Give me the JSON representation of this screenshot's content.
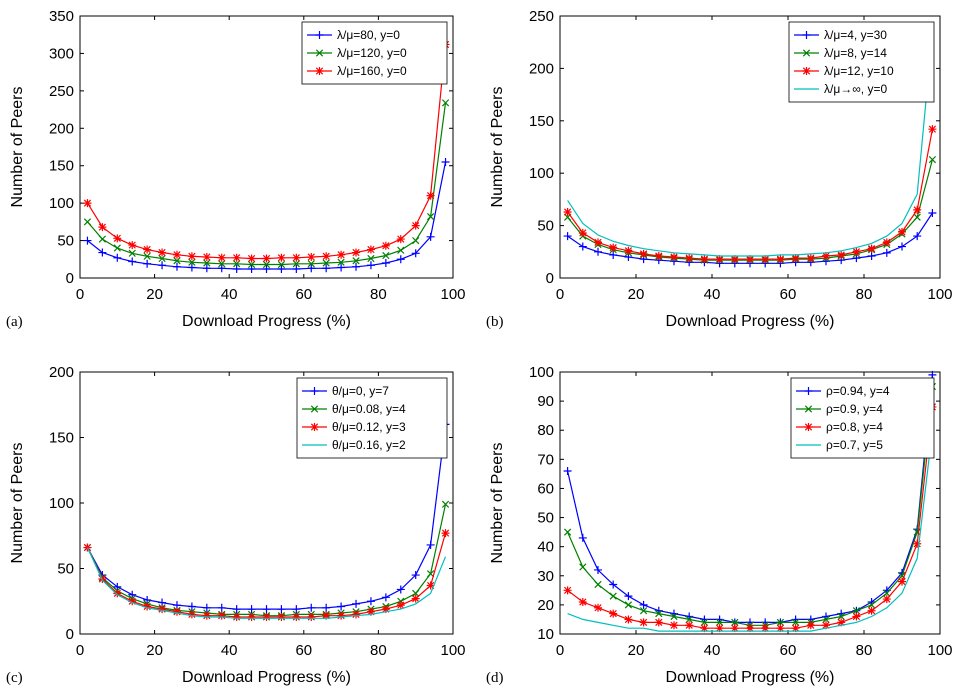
{
  "colors": {
    "blue": "#0000ff",
    "green": "#008000",
    "red": "#ff0000",
    "cyan": "#00bfbf"
  },
  "chart_data": [
    {
      "type": "line",
      "panel_label": "(a)",
      "xlabel": "Download Progress (%)",
      "ylabel": "Number of Peers",
      "xlim": [
        0,
        100
      ],
      "ylim": [
        0,
        350
      ],
      "xticks": [
        0,
        20,
        40,
        60,
        80,
        100
      ],
      "yticks": [
        0,
        50,
        100,
        150,
        200,
        250,
        300,
        350
      ],
      "legend_position": "top-right",
      "x": [
        2,
        6,
        10,
        14,
        18,
        22,
        26,
        30,
        34,
        38,
        42,
        46,
        50,
        54,
        58,
        62,
        66,
        70,
        74,
        78,
        82,
        86,
        90,
        94,
        98
      ],
      "series": [
        {
          "name": "λ/μ=80, y=0",
          "color": "#0000ff",
          "marker": "plus",
          "values": [
            50,
            34,
            27,
            22,
            19,
            17,
            15,
            14,
            13,
            13,
            12,
            12,
            12,
            12,
            12,
            13,
            13,
            14,
            15,
            17,
            20,
            25,
            33,
            55,
            155
          ]
        },
        {
          "name": "λ/μ=120, y=0",
          "color": "#008000",
          "marker": "x",
          "values": [
            75,
            52,
            40,
            33,
            29,
            26,
            23,
            21,
            20,
            19,
            19,
            18,
            18,
            18,
            19,
            19,
            20,
            21,
            23,
            26,
            30,
            37,
            50,
            82,
            234
          ]
        },
        {
          "name": "λ/μ=160, y=0",
          "color": "#ff0000",
          "marker": "star",
          "values": [
            100,
            68,
            53,
            44,
            38,
            34,
            31,
            29,
            28,
            27,
            27,
            26,
            26,
            27,
            27,
            28,
            29,
            31,
            34,
            38,
            43,
            52,
            70,
            110,
            312
          ]
        }
      ]
    },
    {
      "type": "line",
      "panel_label": "(b)",
      "xlabel": "Download Progress (%)",
      "ylabel": "Number of Peers",
      "xlim": [
        0,
        100
      ],
      "ylim": [
        0,
        250
      ],
      "xticks": [
        0,
        20,
        40,
        60,
        80,
        100
      ],
      "yticks": [
        0,
        50,
        100,
        150,
        200,
        250
      ],
      "legend_position": "top-right",
      "x": [
        2,
        6,
        10,
        14,
        18,
        22,
        26,
        30,
        34,
        38,
        42,
        46,
        50,
        54,
        58,
        62,
        66,
        70,
        74,
        78,
        82,
        86,
        90,
        94,
        98
      ],
      "series": [
        {
          "name": "λ/μ=4, y=30",
          "color": "#0000ff",
          "marker": "plus",
          "values": [
            40,
            30,
            25,
            22,
            20,
            18,
            17,
            16,
            15,
            15,
            14,
            14,
            14,
            14,
            14,
            15,
            15,
            16,
            17,
            19,
            21,
            24,
            30,
            40,
            62
          ]
        },
        {
          "name": "λ/μ=8, y=14",
          "color": "#008000",
          "marker": "x",
          "values": [
            58,
            40,
            32,
            27,
            24,
            22,
            20,
            19,
            18,
            17,
            17,
            17,
            17,
            17,
            17,
            18,
            18,
            19,
            21,
            23,
            27,
            32,
            42,
            58,
            113
          ]
        },
        {
          "name": "λ/μ=12, y=10",
          "color": "#ff0000",
          "marker": "star",
          "values": [
            63,
            43,
            34,
            29,
            26,
            23,
            21,
            20,
            19,
            18,
            18,
            18,
            18,
            18,
            18,
            19,
            19,
            21,
            22,
            25,
            28,
            34,
            44,
            65,
            142
          ]
        },
        {
          "name": "λ/μ→∞, y=0",
          "color": "#00bfbf",
          "marker": "none",
          "values": [
            74,
            52,
            41,
            35,
            31,
            28,
            26,
            24,
            23,
            22,
            21,
            21,
            21,
            21,
            22,
            22,
            23,
            24,
            26,
            29,
            33,
            40,
            52,
            80,
            234
          ]
        }
      ]
    },
    {
      "type": "line",
      "panel_label": "(c)",
      "xlabel": "Download Progress (%)",
      "ylabel": "Number of Peers",
      "xlim": [
        0,
        100
      ],
      "ylim": [
        0,
        200
      ],
      "xticks": [
        0,
        20,
        40,
        60,
        80,
        100
      ],
      "yticks": [
        0,
        50,
        100,
        150,
        200
      ],
      "legend_position": "top-right",
      "x": [
        2,
        6,
        10,
        14,
        18,
        22,
        26,
        30,
        34,
        38,
        42,
        46,
        50,
        54,
        58,
        62,
        66,
        70,
        74,
        78,
        82,
        86,
        90,
        94,
        98
      ],
      "series": [
        {
          "name": "θ/μ=0, y=7",
          "color": "#0000ff",
          "marker": "plus",
          "values": [
            66,
            45,
            36,
            30,
            26,
            24,
            22,
            21,
            20,
            20,
            19,
            19,
            19,
            19,
            19,
            20,
            20,
            21,
            23,
            25,
            28,
            34,
            45,
            68,
            160
          ]
        },
        {
          "name": "θ/μ=0.08, y=4",
          "color": "#008000",
          "marker": "x",
          "values": [
            66,
            43,
            33,
            27,
            23,
            20,
            18,
            17,
            16,
            15,
            15,
            15,
            14,
            14,
            15,
            15,
            15,
            16,
            17,
            19,
            21,
            25,
            31,
            46,
            99
          ]
        },
        {
          "name": "θ/μ=0.12, y=3",
          "color": "#ff0000",
          "marker": "star",
          "values": [
            66,
            42,
            31,
            25,
            21,
            19,
            17,
            15,
            14,
            14,
            13,
            13,
            13,
            13,
            13,
            13,
            14,
            14,
            15,
            17,
            19,
            22,
            27,
            37,
            77
          ]
        },
        {
          "name": "θ/μ=0.16, y=2",
          "color": "#00bfbf",
          "marker": "none",
          "values": [
            66,
            41,
            30,
            24,
            20,
            18,
            16,
            14,
            13,
            13,
            12,
            12,
            12,
            12,
            12,
            12,
            12,
            13,
            14,
            15,
            17,
            19,
            23,
            31,
            59
          ]
        }
      ]
    },
    {
      "type": "line",
      "panel_label": "(d)",
      "xlabel": "Download Progress (%)",
      "ylabel": "Number of Peers",
      "xlim": [
        0,
        100
      ],
      "ylim": [
        10,
        100
      ],
      "xticks": [
        0,
        20,
        40,
        60,
        80,
        100
      ],
      "yticks": [
        10,
        20,
        30,
        40,
        50,
        60,
        70,
        80,
        90,
        100
      ],
      "legend_position": "top-right",
      "x": [
        2,
        6,
        10,
        14,
        18,
        22,
        26,
        30,
        34,
        38,
        42,
        46,
        50,
        54,
        58,
        62,
        66,
        70,
        74,
        78,
        82,
        86,
        90,
        94,
        98
      ],
      "series": [
        {
          "name": "ρ=0.94, y=4",
          "color": "#0000ff",
          "marker": "plus",
          "values": [
            66,
            43,
            32,
            27,
            23,
            20,
            18,
            17,
            16,
            15,
            15,
            14,
            14,
            14,
            14,
            15,
            15,
            16,
            17,
            18,
            21,
            25,
            31,
            46,
            99
          ]
        },
        {
          "name": "ρ=0.9, y=4",
          "color": "#008000",
          "marker": "x",
          "values": [
            45,
            33,
            27,
            23,
            20,
            18,
            17,
            16,
            15,
            14,
            14,
            14,
            13,
            13,
            14,
            14,
            14,
            15,
            16,
            18,
            20,
            24,
            30,
            45,
            95
          ]
        },
        {
          "name": "ρ=0.8, y=4",
          "color": "#ff0000",
          "marker": "star",
          "values": [
            25,
            21,
            19,
            17,
            15,
            14,
            14,
            13,
            13,
            12,
            12,
            12,
            12,
            12,
            12,
            12,
            13,
            13,
            14,
            16,
            18,
            22,
            28,
            41,
            88
          ]
        },
        {
          "name": "ρ=0.7, y=5",
          "color": "#00bfbf",
          "marker": "none",
          "values": [
            17,
            15,
            14,
            13,
            12,
            12,
            11,
            11,
            11,
            11,
            11,
            11,
            11,
            11,
            11,
            11,
            11,
            12,
            13,
            14,
            16,
            19,
            24,
            36,
            80
          ]
        }
      ]
    }
  ]
}
